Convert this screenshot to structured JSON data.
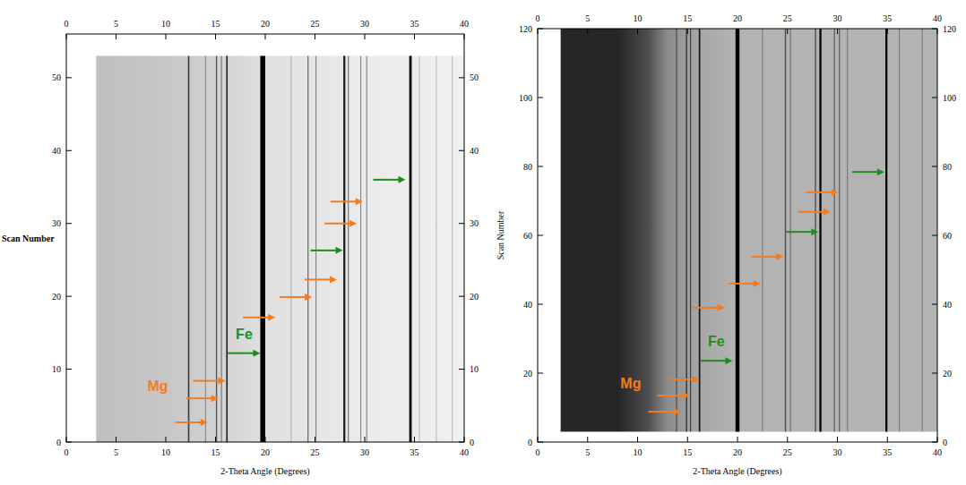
{
  "chart_data": [
    {
      "type": "heatmap",
      "x_label": "2-Theta Angle (Degrees)",
      "y_label": "Scan Number",
      "xlim": [
        0,
        40
      ],
      "xticks": [
        0,
        5,
        10,
        15,
        20,
        25,
        30,
        35,
        40
      ],
      "ylim": [
        0,
        56
      ],
      "yticks": [
        0,
        10,
        20,
        30,
        40,
        50
      ],
      "scan_range": [
        0,
        53
      ],
      "background": {
        "x": [
          3,
          10,
          15,
          20,
          30,
          40
        ],
        "values": [
          0.25,
          0.22,
          0.18,
          0.12,
          0.08,
          0.06
        ]
      },
      "peaks": {
        "x": [
          12.3,
          14.0,
          15.1,
          15.6,
          16.15,
          19.75,
          22.6,
          24.3,
          25.1,
          27.95,
          28.35,
          29.6,
          30.2,
          34.6,
          35.5,
          37.2,
          38.8
        ],
        "widths": [
          0.15,
          0.1,
          0.12,
          0.1,
          0.15,
          0.5,
          0.1,
          0.12,
          0.1,
          0.2,
          0.1,
          0.1,
          0.1,
          0.25,
          0.1,
          0.1,
          0.1
        ],
        "values": [
          0.7,
          0.3,
          0.6,
          0.4,
          0.85,
          1.0,
          0.2,
          0.5,
          0.4,
          0.9,
          0.5,
          0.4,
          0.4,
          1.0,
          0.2,
          0.2,
          0.2
        ]
      },
      "series": [
        {
          "name": "Mg",
          "color": "#f47c20",
          "marker": "arrow",
          "x": [
            14.2,
            15.3,
            16.0,
            21.0,
            24.7,
            27.2,
            29.2,
            29.8
          ],
          "values": [
            2.7,
            6.0,
            8.4,
            17.1,
            19.9,
            22.3,
            30.0,
            33.0
          ]
        },
        {
          "name": "Fe",
          "color": "#1e8c1e",
          "marker": "arrow",
          "x": [
            19.5,
            27.8,
            34.1
          ],
          "values": [
            12.2,
            26.3,
            36.0
          ]
        }
      ]
    },
    {
      "type": "heatmap",
      "x_label": "2-Theta Angle (Degrees)",
      "y_label": "Scan Number",
      "xlim": [
        0,
        40
      ],
      "xticks": [
        0,
        5,
        10,
        15,
        20,
        25,
        30,
        35,
        40
      ],
      "ylim": [
        0,
        120
      ],
      "yticks": [
        0,
        20,
        40,
        60,
        80,
        100,
        120
      ],
      "scan_range": [
        3,
        120
      ],
      "background": {
        "x": [
          2.3,
          8,
          11,
          13,
          16,
          20,
          30,
          40
        ],
        "values": [
          0.85,
          0.85,
          0.7,
          0.45,
          0.35,
          0.3,
          0.3,
          0.3
        ]
      },
      "peaks": {
        "x": [
          13.9,
          14.9,
          15.3,
          16.2,
          20.0,
          22.5,
          24.8,
          25.3,
          27.8,
          28.3,
          29.7,
          30.2,
          31.0,
          34.9,
          36.2,
          38.5
        ],
        "widths": [
          0.1,
          0.12,
          0.1,
          0.15,
          0.4,
          0.1,
          0.12,
          0.1,
          0.12,
          0.2,
          0.1,
          0.1,
          0.1,
          0.2,
          0.1,
          0.1
        ],
        "values": [
          0.5,
          0.7,
          0.6,
          0.9,
          1.0,
          0.3,
          0.6,
          0.4,
          0.6,
          1.0,
          0.5,
          0.5,
          0.3,
          1.0,
          0.3,
          0.3
        ]
      },
      "series": [
        {
          "name": "Mg",
          "color": "#f47c20",
          "marker": "arrow",
          "x": [
            14.3,
            15.2,
            16.2,
            18.7,
            22.3,
            24.6,
            29.3,
            30.1
          ],
          "values": [
            8.8,
            13.5,
            18.2,
            39.0,
            46.0,
            53.8,
            66.8,
            72.5
          ]
        },
        {
          "name": "Fe",
          "color": "#1e8c1e",
          "marker": "arrow",
          "x": [
            19.5,
            28.1,
            34.7
          ],
          "values": [
            23.6,
            61.0,
            78.4
          ]
        }
      ]
    }
  ]
}
